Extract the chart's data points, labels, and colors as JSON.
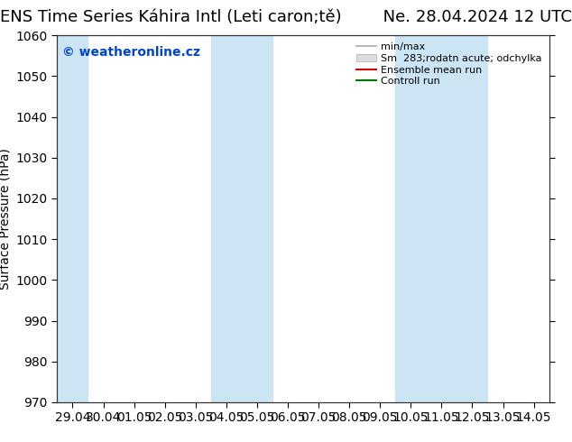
{
  "title": "ENS Time Series Káhira Intl (Leti caron;tě)",
  "date_label": "Ne. 28.04.2024 12 UTC",
  "ylabel": "Surface Pressure (hPa)",
  "watermark": "© weatheronline.cz",
  "ylim": [
    970,
    1060
  ],
  "yticks": [
    970,
    980,
    990,
    1000,
    1010,
    1020,
    1030,
    1040,
    1050,
    1060
  ],
  "x_labels": [
    "29.04",
    "30.04",
    "01.05",
    "02.05",
    "03.05",
    "04.05",
    "05.05",
    "06.05",
    "07.05",
    "08.05",
    "09.05",
    "10.05",
    "11.05",
    "12.05",
    "13.05",
    "14.05"
  ],
  "x_values": [
    0,
    1,
    2,
    3,
    4,
    5,
    6,
    7,
    8,
    9,
    10,
    11,
    12,
    13,
    14,
    15
  ],
  "shaded_bands": [
    {
      "xmin": -0.5,
      "xmax": 0.5
    },
    {
      "xmin": 4.5,
      "xmax": 6.5
    },
    {
      "xmin": 10.5,
      "xmax": 13.5
    }
  ],
  "shaded_color": "#cce5f5",
  "background_color": "#ffffff",
  "plot_bg_color": "#ffffff",
  "legend_entries": [
    {
      "label": "min/max",
      "color": "#aaaaaa",
      "lw": 1.2,
      "ls": "-",
      "type": "line"
    },
    {
      "label": "Sm  283;rodatn acute; odchylka",
      "color": "#cccccc",
      "lw": 6,
      "ls": "-",
      "type": "band"
    },
    {
      "label": "Ensemble mean run",
      "color": "#cc0000",
      "lw": 1.5,
      "ls": "-",
      "type": "line"
    },
    {
      "label": "Controll run",
      "color": "#007700",
      "lw": 1.5,
      "ls": "-",
      "type": "line"
    }
  ],
  "title_fontsize": 13,
  "label_fontsize": 10,
  "tick_fontsize": 10,
  "watermark_fontsize": 10,
  "watermark_color": "#0044cc"
}
